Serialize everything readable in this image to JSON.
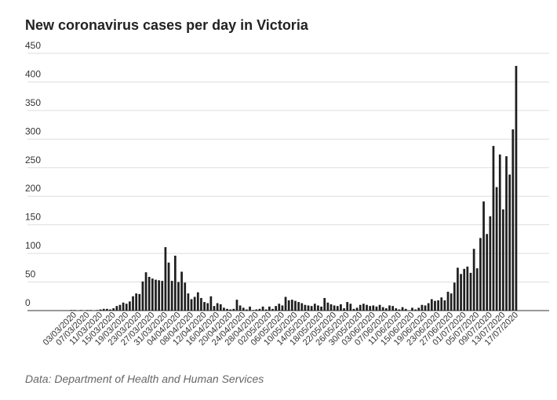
{
  "chart_data": {
    "type": "bar",
    "title": "New coronavirus cases per day in Victoria",
    "source": "Data: Department of Health and Human Services",
    "color": "#1f1f1f",
    "grid": true,
    "ylim": [
      0,
      450
    ],
    "yticks": [
      0,
      50,
      100,
      150,
      200,
      250,
      300,
      350,
      400,
      450
    ],
    "categories": [
      null,
      null,
      null,
      null,
      null,
      null,
      null,
      null,
      null,
      null,
      null,
      null,
      null,
      null,
      "03/03/2020",
      null,
      null,
      null,
      "07/03/2020",
      null,
      null,
      null,
      "11/03/2020",
      null,
      null,
      null,
      "15/03/2020",
      null,
      null,
      null,
      "19/03/2020",
      null,
      null,
      null,
      "23/03/2020",
      null,
      null,
      null,
      "27/03/2020",
      null,
      null,
      null,
      "31/03/2020",
      null,
      null,
      null,
      "04/04/2020",
      null,
      null,
      null,
      "08/04/2020",
      null,
      null,
      null,
      "12/04/2020",
      null,
      null,
      null,
      "16/04/2020",
      null,
      null,
      null,
      "20/04/2020",
      null,
      null,
      null,
      "24/04/2020",
      null,
      null,
      null,
      "28/04/2020",
      null,
      null,
      null,
      "02/05/2020",
      null,
      null,
      null,
      "06/05/2020",
      null,
      null,
      null,
      "10/05/2020",
      null,
      null,
      null,
      "14/05/2020",
      null,
      null,
      null,
      "18/05/2020",
      null,
      null,
      null,
      "22/05/2020",
      null,
      null,
      null,
      "26/05/2020",
      null,
      null,
      null,
      "30/05/2020",
      null,
      null,
      null,
      "03/06/2020",
      null,
      null,
      null,
      "07/06/2020",
      null,
      null,
      null,
      "11/06/2020",
      null,
      null,
      null,
      "15/06/2020",
      null,
      null,
      null,
      "19/06/2020",
      null,
      null,
      null,
      "23/06/2020",
      null,
      null,
      null,
      "27/06/2020",
      null,
      null,
      null,
      "01/07/2020",
      null,
      null,
      null,
      "05/07/2020",
      null,
      null,
      null,
      "09/07/2020",
      null,
      null,
      null,
      "13/07/2020",
      null,
      null,
      null,
      "17/07/2020"
    ],
    "values": [
      0,
      0,
      0,
      0,
      0,
      0,
      0,
      0,
      0,
      0,
      0,
      0,
      0,
      1,
      1,
      0,
      1,
      0,
      1,
      1,
      0,
      1,
      2,
      3,
      3,
      2,
      4,
      8,
      10,
      14,
      12,
      16,
      25,
      30,
      29,
      51,
      67,
      59,
      56,
      54,
      53,
      52,
      111,
      84,
      52,
      96,
      50,
      68,
      49,
      30,
      20,
      24,
      32,
      22,
      15,
      13,
      25,
      8,
      13,
      11,
      5,
      3,
      2,
      3,
      19,
      9,
      5,
      2,
      7,
      1,
      2,
      3,
      7,
      2,
      7,
      3,
      8,
      12,
      9,
      24,
      18,
      19,
      17,
      15,
      13,
      10,
      9,
      8,
      12,
      9,
      7,
      22,
      14,
      11,
      9,
      8,
      11,
      4,
      15,
      12,
      3,
      5,
      10,
      12,
      10,
      8,
      9,
      7,
      10,
      6,
      4,
      9,
      8,
      4,
      2,
      6,
      3,
      0,
      5,
      2,
      5,
      10,
      9,
      13,
      20,
      17,
      18,
      23,
      18,
      33,
      30,
      49,
      75,
      64,
      73,
      77,
      66,
      108,
      74,
      127,
      191,
      134,
      165,
      288,
      216,
      273,
      177,
      270,
      238,
      317,
      428
    ]
  }
}
